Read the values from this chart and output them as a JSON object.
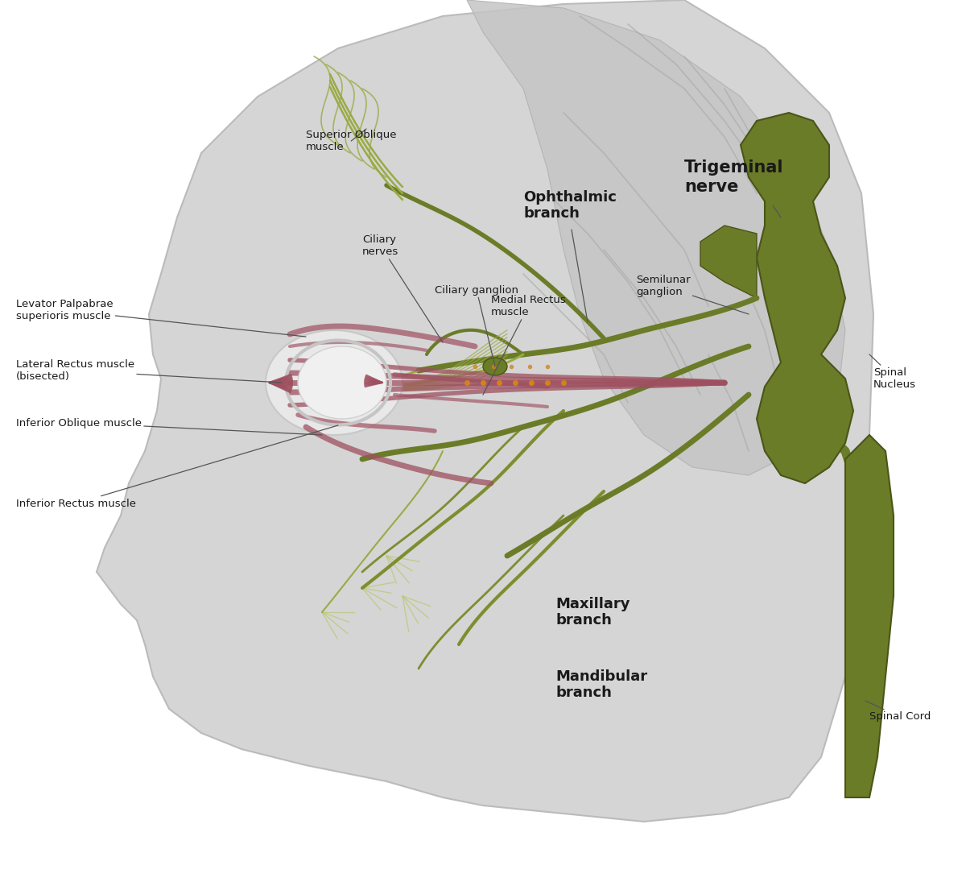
{
  "bg": "#ffffff",
  "head_fill": "#d5d5d5",
  "head_edge": "#bbbbbb",
  "brain_fill": "#c8c8c8",
  "nerve_dark": "#6b7c28",
  "nerve_mid": "#7d8e30",
  "nerve_light": "#9aaa45",
  "nerve_pale": "#b8c870",
  "muscle_dark": "#9e5060",
  "muscle_mid": "#b86878",
  "muscle_light": "#cc8090",
  "eye_white": "#e0e0e0",
  "eye_edge": "#c0c0c0",
  "ganglion": "#6b7c28",
  "txt": "#1a1a1a",
  "arrow": "#555555",
  "orange_dot": "#d4821a",
  "labels": {
    "superior_oblique": "Superior Oblique\nmuscle",
    "ciliary_nerves": "Ciliary\nnerves",
    "ciliary_ganglion": "Ciliary ganglion",
    "medial_rectus": "Medial Rectus\nmuscle",
    "ophthalmic": "Ophthalmic\nbranch",
    "trigeminal": "Trigeminal\nnerve",
    "semilunar": "Semilunar\nganglion",
    "levator": "Levator Palpabrae\nsuperioris muscle",
    "lateral_rectus": "Lateral Rectus muscle\n(bisected)",
    "inferior_oblique": "Inferior Oblique muscle",
    "inferior_rectus": "Inferior Rectus muscle",
    "maxillary": "Maxillary\nbranch",
    "mandibular": "Mandibular\nbranch",
    "spinal_nucleus": "Spinal\nNucleus",
    "spinal_cord": "Spinal Cord"
  }
}
